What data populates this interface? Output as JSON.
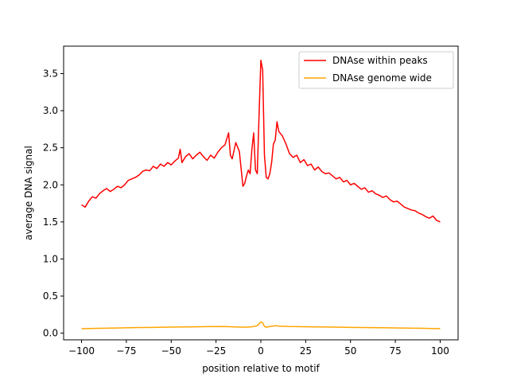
{
  "chart_data": {
    "type": "line",
    "title": "",
    "xlabel": "position relative to motif",
    "ylabel": "average DNA signal",
    "xlim": [
      -110,
      110
    ],
    "ylim": [
      -0.09,
      3.87
    ],
    "xticks": [
      -100,
      -75,
      -50,
      -25,
      0,
      25,
      50,
      75,
      100
    ],
    "xtick_labels": [
      "−100",
      "−75",
      "−50",
      "−25",
      "0",
      "25",
      "50",
      "75",
      "100"
    ],
    "yticks": [
      0.0,
      0.5,
      1.0,
      1.5,
      2.0,
      2.5,
      3.0,
      3.5
    ],
    "ytick_labels": [
      "0.0",
      "0.5",
      "1.0",
      "1.5",
      "2.0",
      "2.5",
      "3.0",
      "3.5"
    ],
    "grid": false,
    "legend_position": "top-right",
    "series": [
      {
        "name": "DNAse within peaks",
        "color": "#ff0000",
        "x": [
          -100,
          -98,
          -96,
          -94,
          -92,
          -90,
          -88,
          -86,
          -84,
          -82,
          -80,
          -78,
          -76,
          -74,
          -72,
          -70,
          -68,
          -66,
          -64,
          -62,
          -60,
          -58,
          -56,
          -54,
          -52,
          -50,
          -48,
          -46,
          -45,
          -44,
          -42,
          -40,
          -38,
          -36,
          -34,
          -32,
          -30,
          -28,
          -26,
          -24,
          -22,
          -20,
          -18,
          -17,
          -16,
          -14,
          -12,
          -10,
          -9,
          -8,
          -7,
          -6,
          -5,
          -4,
          -3,
          -2,
          -1,
          0,
          1,
          2,
          3,
          4,
          5,
          6,
          7,
          8,
          9,
          10,
          12,
          14,
          16,
          18,
          20,
          22,
          24,
          26,
          28,
          30,
          32,
          34,
          36,
          38,
          40,
          42,
          44,
          46,
          48,
          50,
          52,
          54,
          56,
          58,
          60,
          62,
          64,
          66,
          68,
          70,
          72,
          74,
          76,
          78,
          80,
          82,
          84,
          86,
          88,
          90,
          92,
          94,
          96,
          98,
          100
        ],
        "y": [
          1.73,
          1.7,
          1.78,
          1.84,
          1.82,
          1.88,
          1.92,
          1.95,
          1.91,
          1.94,
          1.98,
          1.96,
          2.0,
          2.06,
          2.08,
          2.1,
          2.13,
          2.18,
          2.2,
          2.19,
          2.25,
          2.22,
          2.28,
          2.25,
          2.3,
          2.27,
          2.32,
          2.36,
          2.48,
          2.3,
          2.38,
          2.42,
          2.35,
          2.4,
          2.44,
          2.38,
          2.33,
          2.4,
          2.36,
          2.44,
          2.5,
          2.54,
          2.7,
          2.4,
          2.35,
          2.57,
          2.45,
          1.98,
          2.02,
          2.12,
          2.2,
          2.15,
          2.48,
          2.7,
          2.2,
          2.15,
          2.95,
          3.68,
          3.55,
          2.4,
          2.1,
          2.08,
          2.15,
          2.3,
          2.55,
          2.6,
          2.85,
          2.72,
          2.66,
          2.55,
          2.42,
          2.37,
          2.4,
          2.3,
          2.34,
          2.26,
          2.28,
          2.2,
          2.24,
          2.18,
          2.15,
          2.16,
          2.12,
          2.08,
          2.1,
          2.04,
          2.06,
          2.0,
          2.02,
          1.98,
          1.94,
          1.96,
          1.9,
          1.92,
          1.88,
          1.86,
          1.83,
          1.85,
          1.8,
          1.77,
          1.78,
          1.74,
          1.7,
          1.68,
          1.66,
          1.65,
          1.62,
          1.6,
          1.57,
          1.55,
          1.58,
          1.52,
          1.5
        ]
      },
      {
        "name": "DNAse genome wide",
        "color": "#ffa500",
        "x": [
          -100,
          -90,
          -80,
          -70,
          -60,
          -50,
          -40,
          -30,
          -20,
          -15,
          -10,
          -5,
          -2,
          0,
          1,
          2,
          3,
          5,
          8,
          10,
          15,
          20,
          30,
          40,
          50,
          60,
          70,
          80,
          90,
          100
        ],
        "y": [
          0.06,
          0.065,
          0.07,
          0.075,
          0.078,
          0.082,
          0.085,
          0.088,
          0.09,
          0.085,
          0.08,
          0.085,
          0.1,
          0.15,
          0.14,
          0.09,
          0.08,
          0.09,
          0.1,
          0.095,
          0.09,
          0.088,
          0.085,
          0.082,
          0.078,
          0.075,
          0.072,
          0.068,
          0.065,
          0.06
        ]
      }
    ]
  }
}
